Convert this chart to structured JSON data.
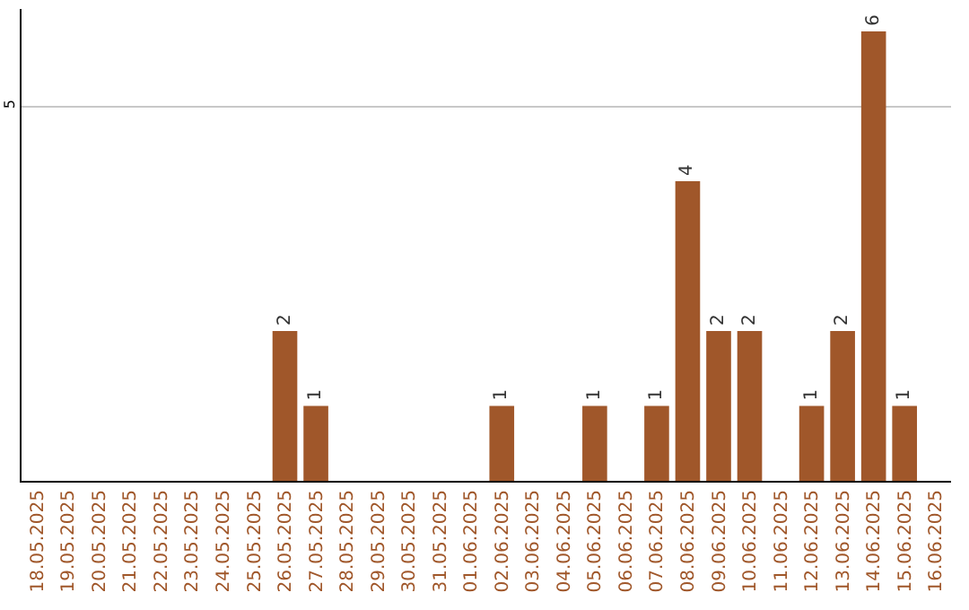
{
  "chart_data": {
    "type": "bar",
    "categories": [
      "18.05.2025",
      "19.05.2025",
      "20.05.2025",
      "21.05.2025",
      "22.05.2025",
      "23.05.2025",
      "24.05.2025",
      "25.05.2025",
      "26.05.2025",
      "27.05.2025",
      "28.05.2025",
      "29.05.2025",
      "30.05.2025",
      "31.05.2025",
      "01.06.2025",
      "02.06.2025",
      "03.06.2025",
      "04.06.2025",
      "05.06.2025",
      "06.06.2025",
      "07.06.2025",
      "08.06.2025",
      "09.06.2025",
      "10.06.2025",
      "11.06.2025",
      "12.06.2025",
      "13.06.2025",
      "14.06.2025",
      "15.06.2025",
      "16.06.2025"
    ],
    "values": [
      null,
      null,
      null,
      null,
      null,
      null,
      null,
      null,
      2,
      1,
      null,
      null,
      null,
      null,
      null,
      1,
      null,
      null,
      1,
      null,
      1,
      4,
      2,
      2,
      null,
      1,
      2,
      6,
      1,
      null
    ],
    "color": "#a0572a",
    "ylim": [
      0,
      6.3
    ],
    "yticks": [
      5
    ],
    "grid": "y",
    "data_labels": true,
    "legend": false
  }
}
